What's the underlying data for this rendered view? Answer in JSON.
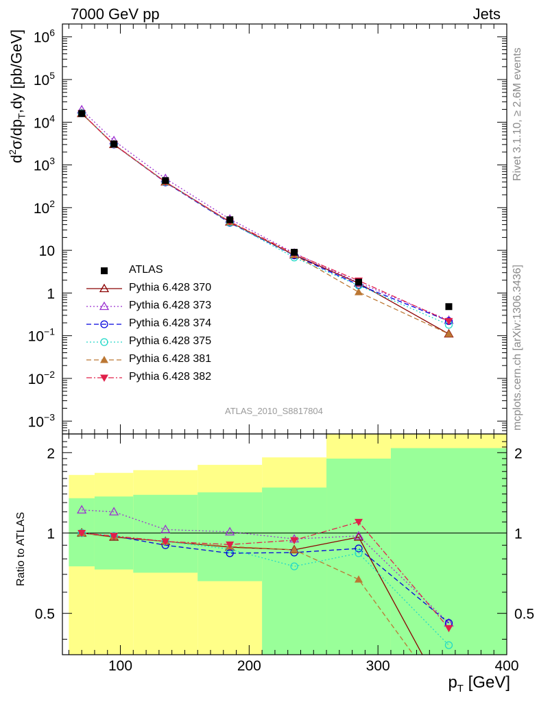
{
  "header": {
    "left": "7000 GeV pp",
    "right": "Jets"
  },
  "side_labels": {
    "rivet": "Rivet 3.1.10, ≥ 2.6M events",
    "mcplots": "mcplots.cern.ch [arXiv:1306.3436]"
  },
  "analysis_label": "ATLAS_2010_S8817804",
  "colors": {
    "band_inner": "#99ff99",
    "band_outer": "#ffff88",
    "data": "#000000"
  },
  "chart_data": [
    {
      "type": "scatter",
      "ylabel": "d²σ/dp_T,dy [pb/GeV]",
      "ylabel_parts": {
        "main": "d",
        "sup": "2",
        "sigma": "σ/dp",
        "sub": "T",
        "tail": ",dy [pb/GeV]"
      },
      "yscale": "log",
      "ylim": [
        0.0005,
        2000000
      ],
      "xlim": [
        55,
        400
      ],
      "yticks": [
        {
          "v": 0.001,
          "base": "10",
          "exp": "−3"
        },
        {
          "v": 0.01,
          "base": "10",
          "exp": "−2"
        },
        {
          "v": 0.1,
          "base": "10",
          "exp": "−1"
        },
        {
          "v": 1,
          "base": "1",
          "exp": ""
        },
        {
          "v": 10,
          "base": "10",
          "exp": ""
        },
        {
          "v": 100,
          "base": "10",
          "exp": "2"
        },
        {
          "v": 1000,
          "base": "10",
          "exp": "3"
        },
        {
          "v": 10000,
          "base": "10",
          "exp": "4"
        },
        {
          "v": 100000,
          "base": "10",
          "exp": "5"
        },
        {
          "v": 1000000,
          "base": "10",
          "exp": "6"
        }
      ],
      "x": [
        70,
        95,
        135,
        185,
        235,
        285,
        355
      ],
      "series": [
        {
          "name": "ATLAS",
          "color": "#000000",
          "marker": "square",
          "dash": "none",
          "values": [
            16000,
            3100,
            430,
            52,
            9,
            1.8,
            0.48
          ]
        },
        {
          "name": "Pythia 6.428 370",
          "color": "#8b0000",
          "marker": "triangle-open",
          "dash": "solid",
          "values": [
            16000,
            3000,
            400,
            46,
            7.8,
            1.7,
            0.11
          ]
        },
        {
          "name": "Pythia 6.428 373",
          "color": "#9b30d0",
          "marker": "triangle-open",
          "dash": "dotted",
          "values": [
            19500,
            3700,
            480,
            54,
            8.6,
            1.75,
            0.23
          ]
        },
        {
          "name": "Pythia 6.428 374",
          "color": "#0000dd",
          "marker": "circle-open",
          "dash": "dashed",
          "values": [
            16200,
            3000,
            390,
            44,
            7.6,
            1.55,
            0.22
          ]
        },
        {
          "name": "Pythia 6.428 375",
          "color": "#20d8c8",
          "marker": "circle-open",
          "dash": "dotted",
          "values": [
            16200,
            3050,
            400,
            45,
            6.8,
            1.5,
            0.18
          ]
        },
        {
          "name": "Pythia 6.428 381",
          "color": "#bb7733",
          "marker": "triangle-filled",
          "dash": "dashed",
          "values": [
            16000,
            3000,
            400,
            46,
            7.8,
            1.05,
            0.11
          ]
        },
        {
          "name": "Pythia 6.428 382",
          "color": "#e0204a",
          "marker": "triangle-down-filled",
          "dash": "dashdot",
          "values": [
            16200,
            3050,
            400,
            47,
            8.3,
            1.95,
            0.22
          ]
        }
      ]
    },
    {
      "type": "line",
      "ylabel": "Ratio to ATLAS",
      "yscale": "log",
      "ylim": [
        0.35,
        2.35
      ],
      "yticks": [
        0.5,
        1,
        2
      ],
      "xlabel": "p_T [GeV]",
      "xlabel_parts": {
        "main": "p",
        "sub": "T",
        "tail": " [GeV]"
      },
      "xlim": [
        55,
        400
      ],
      "xticks": [
        100,
        200,
        300,
        400
      ],
      "bands": [
        {
          "x0": 60,
          "x1": 80,
          "inner": [
            0.75,
            1.35
          ],
          "outer": [
            0.35,
            1.65
          ]
        },
        {
          "x0": 80,
          "x1": 110,
          "inner": [
            0.73,
            1.37
          ],
          "outer": [
            0.35,
            1.68
          ]
        },
        {
          "x0": 110,
          "x1": 160,
          "inner": [
            0.71,
            1.39
          ],
          "outer": [
            0.35,
            1.72
          ]
        },
        {
          "x0": 160,
          "x1": 210,
          "inner": [
            0.66,
            1.42
          ],
          "outer": [
            0.35,
            1.8
          ]
        },
        {
          "x0": 210,
          "x1": 260,
          "inner": [
            0.35,
            1.48
          ],
          "outer": [
            0.35,
            1.92
          ]
        },
        {
          "x0": 260,
          "x1": 310,
          "inner": [
            0.35,
            1.9
          ],
          "outer": [
            0.35,
            2.35
          ]
        },
        {
          "x0": 310,
          "x1": 400,
          "inner": [
            0.35,
            2.08
          ],
          "outer": [
            0.35,
            2.35
          ]
        }
      ],
      "x": [
        70,
        95,
        135,
        185,
        235,
        285,
        355
      ],
      "series": [
        {
          "name": "Pythia 6.428 370",
          "values": [
            1.0,
            0.965,
            0.93,
            0.885,
            0.865,
            0.965,
            0.23
          ]
        },
        {
          "name": "Pythia 6.428 373",
          "values": [
            1.22,
            1.2,
            1.03,
            1.01,
            0.95,
            0.975,
            0.46
          ]
        },
        {
          "name": "Pythia 6.428 374",
          "values": [
            1.0,
            0.975,
            0.9,
            0.84,
            0.845,
            0.875,
            0.46
          ]
        },
        {
          "name": "Pythia 6.428 375",
          "values": [
            1.0,
            0.975,
            0.93,
            0.87,
            0.75,
            0.84,
            0.38
          ]
        },
        {
          "name": "Pythia 6.428 381",
          "values": [
            1.0,
            0.97,
            0.93,
            0.89,
            0.865,
            0.67,
            0.23
          ]
        },
        {
          "name": "Pythia 6.428 382",
          "values": [
            1.0,
            0.975,
            0.93,
            0.905,
            0.94,
            1.1,
            0.44
          ]
        }
      ]
    }
  ]
}
